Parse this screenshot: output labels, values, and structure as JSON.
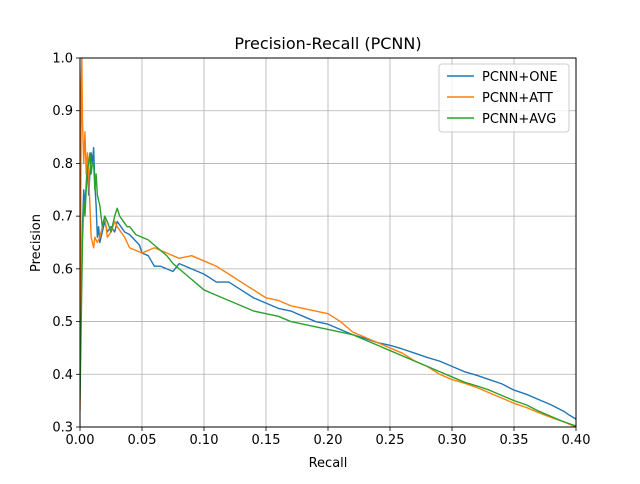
{
  "chart_data": {
    "type": "line",
    "title": "Precision-Recall (PCNN)",
    "xlabel": "Recall",
    "ylabel": "Precision",
    "xlim": [
      0.0,
      0.4
    ],
    "ylim": [
      0.3,
      1.0
    ],
    "xticks": [
      "0.00",
      "0.05",
      "0.10",
      "0.15",
      "0.20",
      "0.25",
      "0.30",
      "0.35",
      "0.40"
    ],
    "yticks": [
      "0.3",
      "0.4",
      "0.5",
      "0.6",
      "0.7",
      "0.8",
      "0.9",
      "1.0"
    ],
    "grid": true,
    "legend_position": "top-right",
    "series": [
      {
        "name": "PCNN+ONE",
        "color": "#1f77b4",
        "x": [
          0.0,
          0.001,
          0.002,
          0.003,
          0.004,
          0.005,
          0.006,
          0.007,
          0.008,
          0.009,
          0.01,
          0.011,
          0.012,
          0.013,
          0.014,
          0.015,
          0.016,
          0.018,
          0.02,
          0.022,
          0.025,
          0.028,
          0.03,
          0.033,
          0.036,
          0.04,
          0.044,
          0.048,
          0.05,
          0.055,
          0.06,
          0.065,
          0.07,
          0.075,
          0.08,
          0.09,
          0.1,
          0.11,
          0.12,
          0.13,
          0.14,
          0.15,
          0.16,
          0.17,
          0.18,
          0.19,
          0.2,
          0.21,
          0.22,
          0.23,
          0.24,
          0.25,
          0.26,
          0.27,
          0.28,
          0.29,
          0.3,
          0.31,
          0.32,
          0.33,
          0.34,
          0.35,
          0.36,
          0.37,
          0.38,
          0.39,
          0.395,
          0.4
        ],
        "y": [
          0.38,
          0.55,
          0.68,
          0.75,
          0.72,
          0.76,
          0.8,
          0.74,
          0.78,
          0.82,
          0.8,
          0.83,
          0.76,
          0.72,
          0.66,
          0.68,
          0.65,
          0.67,
          0.69,
          0.67,
          0.68,
          0.67,
          0.69,
          0.68,
          0.67,
          0.665,
          0.655,
          0.645,
          0.63,
          0.625,
          0.605,
          0.605,
          0.6,
          0.595,
          0.61,
          0.6,
          0.59,
          0.575,
          0.575,
          0.56,
          0.545,
          0.535,
          0.525,
          0.52,
          0.51,
          0.5,
          0.495,
          0.485,
          0.475,
          0.468,
          0.46,
          0.455,
          0.448,
          0.44,
          0.432,
          0.425,
          0.415,
          0.405,
          0.398,
          0.39,
          0.382,
          0.37,
          0.362,
          0.352,
          0.342,
          0.33,
          0.322,
          0.315
        ]
      },
      {
        "name": "PCNN+ATT",
        "color": "#ff7f0e",
        "x": [
          0.0,
          0.001,
          0.0015,
          0.002,
          0.003,
          0.004,
          0.005,
          0.006,
          0.007,
          0.008,
          0.009,
          0.01,
          0.011,
          0.012,
          0.014,
          0.016,
          0.018,
          0.02,
          0.022,
          0.025,
          0.028,
          0.03,
          0.033,
          0.036,
          0.04,
          0.045,
          0.05,
          0.055,
          0.06,
          0.065,
          0.07,
          0.075,
          0.08,
          0.09,
          0.1,
          0.11,
          0.12,
          0.13,
          0.14,
          0.15,
          0.16,
          0.17,
          0.18,
          0.19,
          0.2,
          0.21,
          0.22,
          0.23,
          0.24,
          0.25,
          0.26,
          0.27,
          0.28,
          0.29,
          0.3,
          0.31,
          0.32,
          0.33,
          0.34,
          0.35,
          0.36,
          0.37,
          0.38,
          0.39,
          0.4
        ],
        "y": [
          0.33,
          0.95,
          1.0,
          0.88,
          0.8,
          0.86,
          0.78,
          0.82,
          0.78,
          0.72,
          0.66,
          0.65,
          0.64,
          0.66,
          0.65,
          0.66,
          0.68,
          0.7,
          0.66,
          0.67,
          0.69,
          0.68,
          0.67,
          0.66,
          0.64,
          0.635,
          0.63,
          0.635,
          0.64,
          0.635,
          0.63,
          0.625,
          0.62,
          0.625,
          0.615,
          0.605,
          0.59,
          0.575,
          0.56,
          0.545,
          0.54,
          0.53,
          0.525,
          0.52,
          0.515,
          0.5,
          0.48,
          0.47,
          0.46,
          0.45,
          0.44,
          0.425,
          0.415,
          0.4,
          0.39,
          0.383,
          0.375,
          0.365,
          0.355,
          0.345,
          0.337,
          0.327,
          0.318,
          0.31,
          0.3
        ]
      },
      {
        "name": "PCNN+AVG",
        "color": "#2ca02c",
        "x": [
          0.0,
          0.001,
          0.002,
          0.003,
          0.004,
          0.005,
          0.006,
          0.007,
          0.008,
          0.009,
          0.01,
          0.011,
          0.012,
          0.013,
          0.014,
          0.016,
          0.018,
          0.02,
          0.022,
          0.025,
          0.028,
          0.03,
          0.032,
          0.035,
          0.038,
          0.04,
          0.045,
          0.05,
          0.055,
          0.06,
          0.065,
          0.07,
          0.075,
          0.08,
          0.09,
          0.1,
          0.11,
          0.12,
          0.13,
          0.14,
          0.15,
          0.16,
          0.17,
          0.18,
          0.19,
          0.2,
          0.21,
          0.22,
          0.23,
          0.24,
          0.25,
          0.26,
          0.27,
          0.28,
          0.29,
          0.3,
          0.31,
          0.32,
          0.33,
          0.34,
          0.35,
          0.36,
          0.37,
          0.38,
          0.39,
          0.4
        ],
        "y": [
          0.35,
          0.5,
          0.65,
          0.73,
          0.7,
          0.75,
          0.79,
          0.8,
          0.82,
          0.78,
          0.8,
          0.8,
          0.75,
          0.78,
          0.74,
          0.72,
          0.68,
          0.7,
          0.69,
          0.67,
          0.7,
          0.715,
          0.7,
          0.69,
          0.68,
          0.68,
          0.665,
          0.66,
          0.655,
          0.645,
          0.635,
          0.625,
          0.61,
          0.6,
          0.58,
          0.56,
          0.55,
          0.54,
          0.53,
          0.52,
          0.515,
          0.51,
          0.5,
          0.495,
          0.49,
          0.485,
          0.48,
          0.475,
          0.465,
          0.455,
          0.445,
          0.435,
          0.425,
          0.415,
          0.405,
          0.395,
          0.385,
          0.378,
          0.37,
          0.36,
          0.35,
          0.342,
          0.33,
          0.32,
          0.31,
          0.302
        ]
      }
    ]
  }
}
